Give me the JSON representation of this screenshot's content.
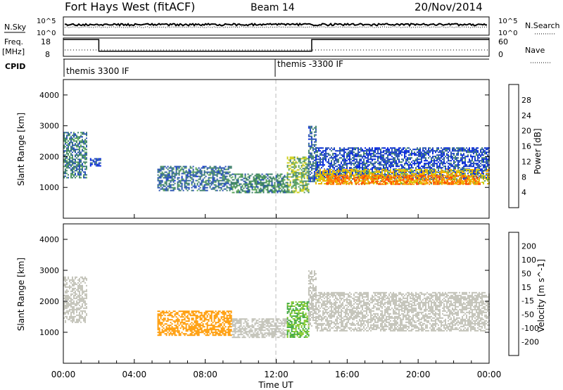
{
  "header": {
    "title": "Fort Hays West (fitACF)",
    "beam": "Beam 14",
    "date": "20/Nov/2014"
  },
  "strips": {
    "nsky_label": "N.Sky",
    "nsky_ticks": [
      "10^5",
      "10^0"
    ],
    "nsearch_label": "N.Search",
    "nsearch_ticks": [
      "10^5",
      "10^0"
    ],
    "freq_label": "Freq.",
    "freq_unit": "[MHz]",
    "freq_ticks": [
      "18",
      "8"
    ],
    "nave_label": "Nave",
    "nave_ticks": [
      "60",
      "0"
    ],
    "cpid_label": "CPID",
    "cpid_modes": [
      {
        "label": "themis 3300 IF",
        "start_hour": 0
      },
      {
        "label": "themis -3300 IF",
        "start_hour": 12
      }
    ],
    "freq_steps_mhz": [
      [
        0,
        17.2
      ],
      [
        2,
        10.8
      ],
      [
        14,
        17.2
      ],
      [
        24,
        17.2
      ]
    ]
  },
  "colors": {
    "power": [
      "#0022dd",
      "#244fb3",
      "#3c7f6a",
      "#5aa55a",
      "#cfcf18",
      "#f0b000",
      "#ff8000",
      "#ff4000",
      "#ee0000"
    ],
    "velocity": [
      "#ee0000",
      "#ff5500",
      "#ff9900",
      "#e8bb55",
      "#c2c2b8",
      "#88cc33",
      "#44aa44",
      "#3355aa",
      "#1030c0"
    ]
  },
  "chart_data": [
    {
      "type": "heatmap",
      "title": "Power",
      "ylabel": "Slant Range [km]",
      "xlabel": "",
      "xlim": [
        0,
        24
      ],
      "ylim": [
        0,
        4500
      ],
      "yticks": [
        "1000",
        "2000",
        "3000",
        "4000"
      ],
      "colorbar_label": "Power [dB]",
      "colorbar_ticks": [
        "4",
        "8",
        "12",
        "16",
        "20",
        "24",
        "28"
      ],
      "regions": [
        {
          "x": [
            0.0,
            1.3
          ],
          "y": [
            1300,
            2800
          ],
          "value": 10
        },
        {
          "x": [
            1.5,
            2.1
          ],
          "y": [
            1700,
            1950
          ],
          "value": 6
        },
        {
          "x": [
            5.3,
            9.5
          ],
          "y": [
            900,
            1700
          ],
          "value": 9
        },
        {
          "x": [
            9.5,
            12.6
          ],
          "y": [
            850,
            1450
          ],
          "value": 11
        },
        {
          "x": [
            12.6,
            13.8
          ],
          "y": [
            850,
            2000
          ],
          "value": 14
        },
        {
          "x": [
            13.8,
            14.2
          ],
          "y": [
            1200,
            3000
          ],
          "value": 8
        },
        {
          "x": [
            14.2,
            24.0
          ],
          "y": [
            1250,
            2300
          ],
          "value": 6
        },
        {
          "x": [
            14.2,
            24.0
          ],
          "y": [
            1100,
            1600
          ],
          "value": 18
        },
        {
          "x": [
            14.8,
            23.5
          ],
          "y": [
            1100,
            1400
          ],
          "value": 24
        }
      ]
    },
    {
      "type": "heatmap",
      "title": "Velocity",
      "ylabel": "Slant Range [km]",
      "xlabel": "Time UT",
      "xlim": [
        0,
        24
      ],
      "ylim": [
        0,
        4500
      ],
      "yticks": [
        "1000",
        "2000",
        "3000",
        "4000"
      ],
      "xticks": [
        "00:00",
        "04:00",
        "08:00",
        "12:00",
        "16:00",
        "20:00",
        "00:00"
      ],
      "colorbar_label": "Velocity [m s^-1]",
      "colorbar_ticks": [
        "200",
        "100",
        "50",
        "15",
        "-15",
        "-50",
        "-100",
        "-200"
      ],
      "regions": [
        {
          "x": [
            0.0,
            1.3
          ],
          "y": [
            1300,
            2800
          ],
          "value": 0
        },
        {
          "x": [
            5.3,
            9.5
          ],
          "y": [
            900,
            1700
          ],
          "value": -60
        },
        {
          "x": [
            9.5,
            12.6
          ],
          "y": [
            850,
            1450
          ],
          "value": 0
        },
        {
          "x": [
            12.6,
            13.8
          ],
          "y": [
            850,
            2000
          ],
          "value": 50
        },
        {
          "x": [
            13.8,
            14.2
          ],
          "y": [
            1200,
            3000
          ],
          "value": 0
        },
        {
          "x": [
            14.2,
            24.0
          ],
          "y": [
            1050,
            2300
          ],
          "value": 0
        }
      ]
    }
  ]
}
